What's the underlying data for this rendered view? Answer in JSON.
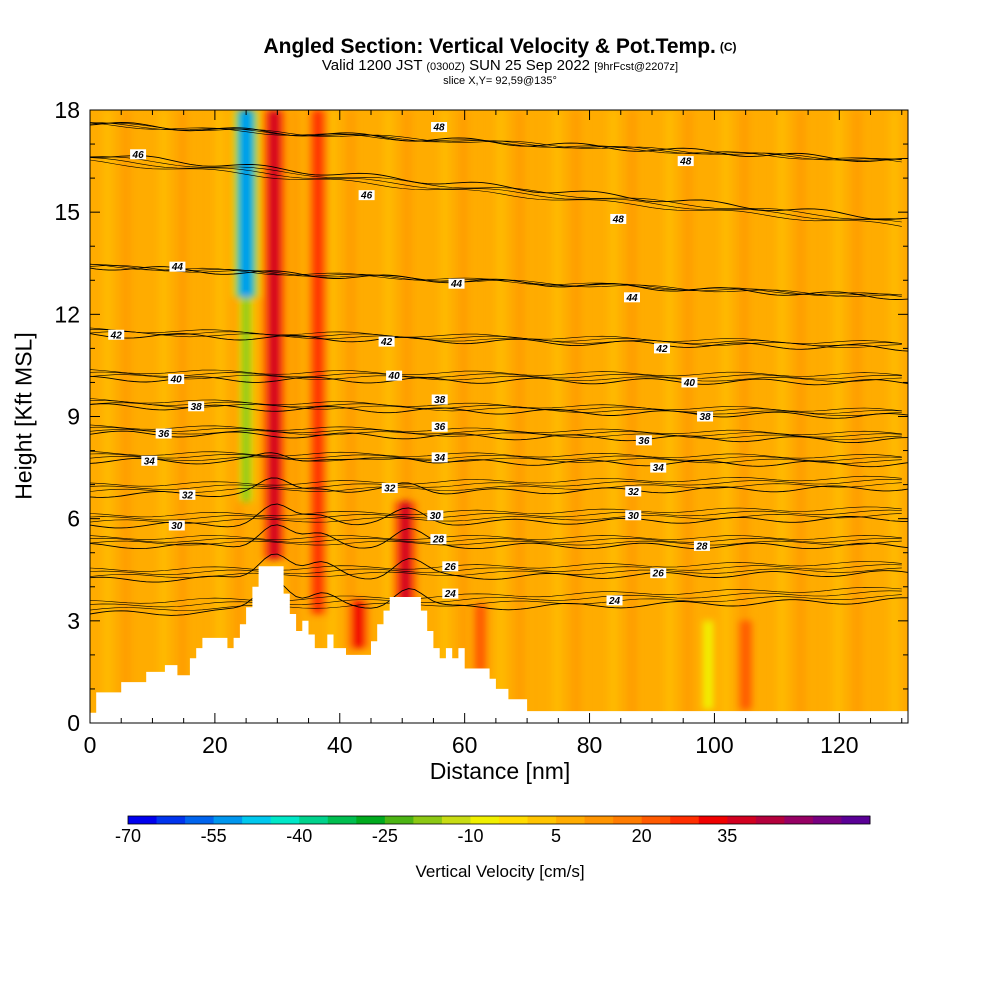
{
  "header": {
    "title": "Angled Section: Vertical Velocity & Pot.Temp.",
    "title_units": "(C)",
    "valid_prefix": "Valid 1200 JST",
    "valid_utc": "(0300Z)",
    "valid_date": "SUN 25 Sep 2022",
    "forecast": "[9hrFcst@2207z]",
    "slice": "slice X,Y= 92,59@135°"
  },
  "chart_data": {
    "type": "heatmap",
    "xlabel": "Distance [nm]",
    "ylabel": "Height [Kft MSL]",
    "xlim": [
      0,
      131
    ],
    "ylim": [
      0,
      18
    ],
    "x_ticks": [
      "0",
      "20",
      "40",
      "60",
      "80",
      "100",
      "120"
    ],
    "y_ticks": [
      "0",
      "3",
      "6",
      "9",
      "12",
      "15",
      "18"
    ],
    "background_velocity": 5,
    "updraft_columns": [
      {
        "x": 29.5,
        "y_bottom": 4.8,
        "y_top": 18,
        "peak": 35
      },
      {
        "x": 36.5,
        "y_bottom": 3.2,
        "y_top": 18,
        "peak": 25
      },
      {
        "x": 43,
        "y_bottom": 2.2,
        "y_top": 3.6,
        "peak": 30
      },
      {
        "x": 50.5,
        "y_bottom": 3.5,
        "y_top": 6.5,
        "peak": 35
      },
      {
        "x": 62.5,
        "y_bottom": 1.5,
        "y_top": 3.5,
        "peak": 20
      },
      {
        "x": 105,
        "y_bottom": 0.4,
        "y_top": 3.0,
        "peak": 20
      }
    ],
    "downdraft_columns": [
      {
        "x": 25,
        "y_bottom": 12.5,
        "y_top": 18,
        "peak": -55
      },
      {
        "x": 25,
        "y_bottom": 6.5,
        "y_top": 12.5,
        "peak": -20
      },
      {
        "x": 99,
        "y_bottom": 0.4,
        "y_top": 3.0,
        "peak": -10
      }
    ],
    "terrain": [
      [
        0,
        0.3
      ],
      [
        1,
        0.3
      ],
      [
        1,
        0.9
      ],
      [
        5,
        0.9
      ],
      [
        5,
        1.2
      ],
      [
        9,
        1.2
      ],
      [
        9,
        1.5
      ],
      [
        12,
        1.5
      ],
      [
        12,
        1.7
      ],
      [
        14,
        1.7
      ],
      [
        14,
        1.4
      ],
      [
        16,
        1.4
      ],
      [
        16,
        1.9
      ],
      [
        17,
        1.9
      ],
      [
        17,
        2.2
      ],
      [
        18,
        2.2
      ],
      [
        18,
        2.5
      ],
      [
        22,
        2.5
      ],
      [
        22,
        2.2
      ],
      [
        23,
        2.2
      ],
      [
        23,
        2.5
      ],
      [
        24,
        2.5
      ],
      [
        24,
        2.9
      ],
      [
        25,
        2.9
      ],
      [
        25,
        3.4
      ],
      [
        26,
        3.4
      ],
      [
        26,
        4.0
      ],
      [
        27,
        4.0
      ],
      [
        27,
        4.6
      ],
      [
        31,
        4.6
      ],
      [
        31,
        3.8
      ],
      [
        32,
        3.8
      ],
      [
        32,
        3.2
      ],
      [
        33,
        3.2
      ],
      [
        33,
        2.7
      ],
      [
        34,
        2.7
      ],
      [
        34,
        3.0
      ],
      [
        35,
        3.0
      ],
      [
        35,
        2.6
      ],
      [
        36,
        2.6
      ],
      [
        36,
        2.2
      ],
      [
        38,
        2.2
      ],
      [
        38,
        2.6
      ],
      [
        39,
        2.6
      ],
      [
        39,
        2.2
      ],
      [
        41,
        2.2
      ],
      [
        41,
        2.0
      ],
      [
        45,
        2.0
      ],
      [
        45,
        2.4
      ],
      [
        46,
        2.4
      ],
      [
        46,
        2.9
      ],
      [
        47,
        2.9
      ],
      [
        47,
        3.3
      ],
      [
        48,
        3.3
      ],
      [
        48,
        3.7
      ],
      [
        53,
        3.7
      ],
      [
        53,
        3.3
      ],
      [
        54,
        3.3
      ],
      [
        54,
        2.7
      ],
      [
        55,
        2.7
      ],
      [
        55,
        2.2
      ],
      [
        56,
        2.2
      ],
      [
        56,
        1.9
      ],
      [
        57,
        1.9
      ],
      [
        57,
        2.2
      ],
      [
        58,
        2.2
      ],
      [
        58,
        1.9
      ],
      [
        59,
        1.9
      ],
      [
        59,
        2.2
      ],
      [
        60,
        2.2
      ],
      [
        60,
        1.6
      ],
      [
        64,
        1.6
      ],
      [
        64,
        1.3
      ],
      [
        65,
        1.3
      ],
      [
        65,
        1.0
      ],
      [
        67,
        1.0
      ],
      [
        67,
        0.7
      ],
      [
        70,
        0.7
      ],
      [
        70,
        0.35
      ],
      [
        131,
        0.35
      ]
    ],
    "isentropes": [
      {
        "label": "24",
        "y0": 3.2,
        "y1": 3.6,
        "lx": [
          57.7,
          84
        ],
        "ly": [
          3.8,
          3.6
        ]
      },
      {
        "label": "26",
        "y0": 4.2,
        "y1": 4.4,
        "lx": [
          57.7,
          91
        ],
        "ly": [
          4.6,
          4.4
        ]
      },
      {
        "label": "28",
        "y0": 5.2,
        "y1": 5.2,
        "lx": [
          55.8,
          98
        ],
        "ly": [
          5.4,
          5.2
        ]
      },
      {
        "label": "30",
        "y0": 5.8,
        "y1": 6.0,
        "lx": [
          13.9,
          55.3,
          87
        ],
        "ly": [
          5.8,
          6.1,
          6.1
        ]
      },
      {
        "label": "32",
        "y0": 6.7,
        "y1": 6.9,
        "lx": [
          15.6,
          48,
          87
        ],
        "ly": [
          6.7,
          6.9,
          6.8
        ]
      },
      {
        "label": "34",
        "y0": 7.7,
        "y1": 7.6,
        "lx": [
          9.5,
          56,
          91
        ],
        "ly": [
          7.7,
          7.8,
          7.5
        ]
      },
      {
        "label": "36",
        "y0": 8.5,
        "y1": 8.3,
        "lx": [
          11.8,
          56,
          88.7
        ],
        "ly": [
          8.5,
          8.7,
          8.3
        ]
      },
      {
        "label": "38",
        "y0": 9.3,
        "y1": 9.0,
        "lx": [
          17,
          56,
          98.5
        ],
        "ly": [
          9.3,
          9.5,
          9.0
        ]
      },
      {
        "label": "40",
        "y0": 10.1,
        "y1": 10.0,
        "lx": [
          13.8,
          48.7,
          96
        ],
        "ly": [
          10.1,
          10.2,
          10.0
        ]
      },
      {
        "label": "42",
        "y0": 11.4,
        "y1": 11.0,
        "lx": [
          4.2,
          47.5,
          91.6
        ],
        "ly": [
          11.4,
          11.2,
          11.0
        ]
      },
      {
        "label": "44",
        "y0": 13.4,
        "y1": 12.5,
        "lx": [
          14,
          58.7,
          86.8
        ],
        "ly": [
          13.4,
          12.9,
          12.5
        ]
      },
      {
        "label": "46",
        "y0": 16.7,
        "y1": 14.8,
        "lx": [
          7.7,
          44.3
        ],
        "ly": [
          16.7,
          15.5
        ]
      },
      {
        "label": "48",
        "y0": 17.6,
        "y1": 16.5,
        "lx": [
          55.9,
          84.6,
          95.4
        ],
        "ly": [
          17.5,
          14.8,
          16.5
        ]
      }
    ],
    "colorbar": {
      "label": "Vertical Velocity [cm/s]",
      "tick_labels": [
        "-70",
        "-55",
        "-40",
        "-25",
        "-10",
        "5",
        "20",
        "35"
      ],
      "colors": [
        "#0000ee",
        "#0034ee",
        "#0064ee",
        "#0096ee",
        "#00c8ee",
        "#00e8c8",
        "#00d28c",
        "#00be50",
        "#00aa1e",
        "#4cb414",
        "#8cc814",
        "#c8dc14",
        "#f0f000",
        "#ffdc00",
        "#ffc400",
        "#ffac00",
        "#ff9400",
        "#ff7c00",
        "#ff5a00",
        "#ff2e00",
        "#f00000",
        "#d20020",
        "#b4003c",
        "#960064",
        "#780080",
        "#5a0096"
      ]
    }
  }
}
